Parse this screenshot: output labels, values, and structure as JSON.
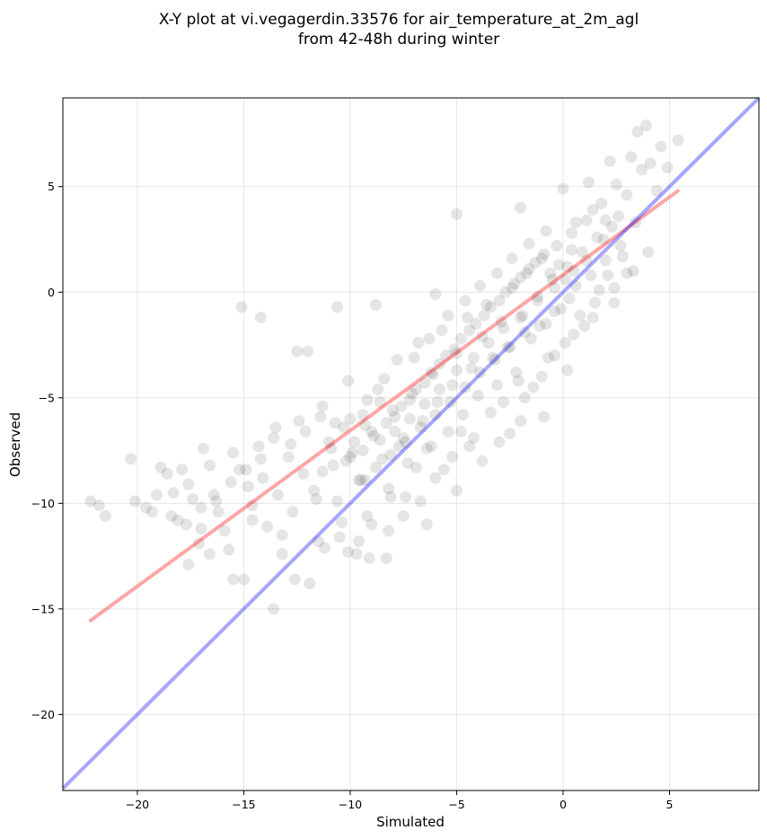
{
  "chart_data": {
    "type": "scatter",
    "title_line1": "X-Y plot at vi.vegagerdin.33576 for air_temperature_at_2m_agl",
    "title_line2": "from 42-48h during winter",
    "xlabel": "Simulated",
    "ylabel": "Observed",
    "xlim": [
      -23.5,
      9.2
    ],
    "ylim": [
      -23.6,
      9.2
    ],
    "xticks": [
      -20,
      -15,
      -10,
      -5,
      0,
      5
    ],
    "yticks": [
      -20,
      -15,
      -10,
      -5,
      0,
      5
    ],
    "xtick_labels": [
      "−20",
      "−15",
      "−10",
      "−5",
      "0",
      "5"
    ],
    "ytick_labels": [
      "−20",
      "−15",
      "−10",
      "−5",
      "0",
      "5"
    ],
    "grid": true,
    "point_color": "#000000",
    "point_alpha": 0.1,
    "points": [
      [
        -22.2,
        -9.9
      ],
      [
        -21.8,
        -10.1
      ],
      [
        -21.5,
        -10.6
      ],
      [
        -20.3,
        -7.9
      ],
      [
        -20.1,
        -9.9
      ],
      [
        -19.6,
        -10.2
      ],
      [
        -19.3,
        -10.4
      ],
      [
        -18.9,
        -8.3
      ],
      [
        -18.6,
        -8.6
      ],
      [
        -18.3,
        -9.5
      ],
      [
        -18.1,
        -10.8
      ],
      [
        -17.9,
        -8.4
      ],
      [
        -17.6,
        -9.1
      ],
      [
        -17.4,
        -9.8
      ],
      [
        -17.1,
        -11.9
      ],
      [
        -16.9,
        -7.4
      ],
      [
        -16.6,
        -8.2
      ],
      [
        -16.4,
        -9.6
      ],
      [
        -16.2,
        -10.4
      ],
      [
        -15.9,
        -11.3
      ],
      [
        -15.7,
        -12.2
      ],
      [
        -15.5,
        -7.6
      ],
      [
        -15.2,
        -8.4
      ],
      [
        -15.0,
        -13.6
      ],
      [
        -14.8,
        -9.2
      ],
      [
        -14.6,
        -10.1
      ],
      [
        -14.3,
        -7.3
      ],
      [
        -14.1,
        -8.8
      ],
      [
        -13.9,
        -11.1
      ],
      [
        -13.6,
        -6.9
      ],
      [
        -13.4,
        -9.6
      ],
      [
        -13.2,
        -12.4
      ],
      [
        -12.9,
        -7.8
      ],
      [
        -12.7,
        -10.4
      ],
      [
        -12.4,
        -6.1
      ],
      [
        -12.2,
        -8.6
      ],
      [
        -12.0,
        -2.8
      ],
      [
        -11.7,
        -9.4
      ],
      [
        -11.5,
        -11.8
      ],
      [
        -11.3,
        -5.4
      ],
      [
        -11.0,
        -7.1
      ],
      [
        -10.8,
        -8.2
      ],
      [
        -10.6,
        -9.9
      ],
      [
        -10.3,
        -6.4
      ],
      [
        -10.1,
        -4.2
      ],
      [
        -9.9,
        -7.6
      ],
      [
        -9.6,
        -8.9
      ],
      [
        -9.4,
        -5.8
      ],
      [
        -9.2,
        -10.6
      ],
      [
        -8.9,
        -6.8
      ],
      [
        -8.7,
        -4.6
      ],
      [
        -8.5,
        -7.9
      ],
      [
        -8.2,
        -9.3
      ],
      [
        -8.0,
        -5.6
      ],
      [
        -7.8,
        -3.2
      ],
      [
        -7.5,
        -6.9
      ],
      [
        -7.3,
        -8.1
      ],
      [
        -7.1,
        -4.8
      ],
      [
        -6.8,
        -2.4
      ],
      [
        -6.6,
        -6.1
      ],
      [
        -6.4,
        -7.4
      ],
      [
        -6.1,
        -3.9
      ],
      [
        -5.9,
        -5.2
      ],
      [
        -5.7,
        -1.8
      ],
      [
        -5.4,
        -6.6
      ],
      [
        -5.2,
        -4.4
      ],
      [
        -5.0,
        -2.9
      ],
      [
        -4.7,
        -5.8
      ],
      [
        -4.5,
        -1.2
      ],
      [
        -4.3,
        -3.6
      ],
      [
        -4.0,
        -4.9
      ],
      [
        -3.8,
        -2.1
      ],
      [
        -3.6,
        -0.6
      ],
      [
        -3.3,
        -3.1
      ],
      [
        -3.1,
        -4.4
      ],
      [
        -2.9,
        -1.4
      ],
      [
        -2.6,
        -2.6
      ],
      [
        -2.4,
        0.2
      ],
      [
        -2.2,
        -3.8
      ],
      [
        -1.9,
        -1.1
      ],
      [
        -1.7,
        0.9
      ],
      [
        -1.5,
        -2.2
      ],
      [
        -1.2,
        -0.2
      ],
      [
        -1.0,
        1.6
      ],
      [
        -0.8,
        -1.5
      ],
      [
        -0.5,
        0.6
      ],
      [
        -0.3,
        2.2
      ],
      [
        -0.1,
        -0.8
      ],
      [
        0.2,
        1.2
      ],
      [
        0.4,
        2.8
      ],
      [
        0.6,
        0.3
      ],
      [
        0.9,
        1.9
      ],
      [
        1.1,
        3.4
      ],
      [
        1.3,
        0.8
      ],
      [
        1.6,
        2.6
      ],
      [
        1.8,
        4.2
      ],
      [
        2.0,
        1.5
      ],
      [
        2.3,
        3.1
      ],
      [
        2.5,
        5.1
      ],
      [
        2.7,
        2.2
      ],
      [
        3.0,
        4.6
      ],
      [
        3.2,
        6.4
      ],
      [
        3.4,
        3.3
      ],
      [
        3.7,
        5.8
      ],
      [
        3.9,
        7.9
      ],
      [
        4.1,
        6.1
      ],
      [
        4.4,
        4.8
      ],
      [
        4.6,
        6.9
      ],
      [
        4.9,
        5.9
      ],
      [
        5.4,
        7.2
      ],
      [
        -15.1,
        -0.7
      ],
      [
        -14.2,
        -1.2
      ],
      [
        -10.6,
        -0.7
      ],
      [
        -12.5,
        -2.8
      ],
      [
        -8.8,
        -0.6
      ],
      [
        -6.0,
        -0.1
      ],
      [
        -5.0,
        3.7
      ],
      [
        -2.0,
        4.0
      ],
      [
        0.0,
        4.9
      ],
      [
        1.2,
        5.2
      ],
      [
        2.2,
        6.2
      ],
      [
        3.5,
        7.6
      ],
      [
        -9.6,
        -11.8
      ],
      [
        -9.1,
        -12.6
      ],
      [
        -8.3,
        -12.6
      ],
      [
        -12.6,
        -13.6
      ],
      [
        -13.6,
        -15.0
      ],
      [
        -11.9,
        -13.8
      ],
      [
        -10.1,
        -12.3
      ],
      [
        -6.4,
        -11.0
      ],
      [
        -7.4,
        -9.7
      ],
      [
        -5.0,
        -9.4
      ],
      [
        -3.8,
        -8.0
      ],
      [
        -2.0,
        -6.1
      ],
      [
        -0.9,
        -5.9
      ],
      [
        0.2,
        -3.7
      ],
      [
        1.4,
        -1.2
      ],
      [
        2.4,
        0.2
      ],
      [
        3.3,
        1.0
      ],
      [
        4.0,
        1.9
      ],
      [
        -17.6,
        -12.9
      ],
      [
        -16.6,
        -12.4
      ],
      [
        -15.5,
        -13.6
      ],
      [
        -17.0,
        -11.2
      ],
      [
        -14.6,
        -10.8
      ],
      [
        -13.2,
        -11.5
      ],
      [
        -11.6,
        -9.8
      ],
      [
        -10.4,
        -10.9
      ],
      [
        -9.3,
        -8.9
      ],
      [
        -8.1,
        -9.7
      ],
      [
        -7.7,
        -7.3
      ],
      [
        -6.9,
        -8.3
      ],
      [
        -6.2,
        -7.3
      ],
      [
        -5.6,
        -8.4
      ],
      [
        -4.8,
        -6.6
      ],
      [
        -4.2,
        -6.9
      ],
      [
        -3.4,
        -5.7
      ],
      [
        -2.8,
        -5.2
      ],
      [
        -2.1,
        -4.2
      ],
      [
        -1.4,
        -4.5
      ],
      [
        -0.7,
        -3.1
      ],
      [
        0.1,
        -2.4
      ],
      [
        0.8,
        -1.1
      ],
      [
        1.5,
        -0.5
      ],
      [
        2.1,
        0.8
      ],
      [
        2.8,
        1.7
      ],
      [
        -9.8,
        -7.1
      ],
      [
        -9.4,
        -7.5
      ],
      [
        -9.0,
        -6.6
      ],
      [
        -8.6,
        -7.0
      ],
      [
        -8.3,
        -6.2
      ],
      [
        -7.9,
        -5.9
      ],
      [
        -7.6,
        -5.4
      ],
      [
        -7.2,
        -5.1
      ],
      [
        -6.9,
        -4.6
      ],
      [
        -6.5,
        -4.3
      ],
      [
        -6.2,
        -3.8
      ],
      [
        -5.8,
        -3.4
      ],
      [
        -5.5,
        -3.0
      ],
      [
        -5.1,
        -2.7
      ],
      [
        -4.8,
        -2.2
      ],
      [
        -4.4,
        -1.8
      ],
      [
        -4.1,
        -1.5
      ],
      [
        -3.7,
        -1.1
      ],
      [
        -3.4,
        -0.7
      ],
      [
        -3.0,
        -0.4
      ],
      [
        -2.7,
        0.0
      ],
      [
        -2.3,
        0.4
      ],
      [
        -2.0,
        0.7
      ],
      [
        -1.6,
        1.1
      ],
      [
        -1.3,
        1.4
      ],
      [
        -0.9,
        1.8
      ],
      [
        -0.6,
        0.9
      ],
      [
        -0.2,
        1.3
      ],
      [
        0.1,
        0.6
      ],
      [
        0.5,
        1.0
      ],
      [
        -1.8,
        -1.9
      ],
      [
        -1.1,
        -1.6
      ],
      [
        -0.4,
        -0.9
      ],
      [
        0.3,
        -0.3
      ],
      [
        -2.5,
        -2.6
      ],
      [
        -3.2,
        -3.2
      ],
      [
        -3.9,
        -3.8
      ],
      [
        -4.6,
        -4.5
      ],
      [
        -5.3,
        -5.2
      ],
      [
        -6.0,
        -5.8
      ],
      [
        -6.7,
        -6.4
      ],
      [
        -7.4,
        -7.1
      ],
      [
        -8.1,
        -7.7
      ],
      [
        -8.8,
        -8.3
      ],
      [
        -9.5,
        -8.9
      ],
      [
        -10.2,
        -8.0
      ],
      [
        -10.9,
        -7.4
      ],
      [
        -11.3,
        -8.5
      ],
      [
        -10.0,
        -6.0
      ],
      [
        -9.2,
        -5.1
      ],
      [
        -8.4,
        -4.1
      ],
      [
        -7.0,
        -3.1
      ],
      [
        -6.3,
        -2.2
      ],
      [
        -5.4,
        -1.1
      ],
      [
        -4.6,
        -0.4
      ],
      [
        -3.9,
        0.3
      ],
      [
        -3.1,
        0.9
      ],
      [
        -2.4,
        1.6
      ],
      [
        -1.6,
        2.3
      ],
      [
        -0.8,
        2.9
      ],
      [
        0.6,
        3.3
      ],
      [
        1.4,
        3.9
      ],
      [
        2.0,
        3.4
      ],
      [
        2.6,
        3.6
      ],
      [
        1.9,
        2.5
      ],
      [
        1.1,
        1.5
      ],
      [
        0.4,
        2.0
      ],
      [
        -0.4,
        0.2
      ],
      [
        -1.2,
        -0.4
      ],
      [
        -2.0,
        -1.2
      ],
      [
        -2.8,
        -1.7
      ],
      [
        -3.5,
        -2.4
      ],
      [
        -4.2,
        -3.1
      ],
      [
        -5.0,
        -3.7
      ],
      [
        -5.8,
        -4.6
      ],
      [
        -6.5,
        -5.3
      ],
      [
        -7.2,
        -6.0
      ],
      [
        -7.9,
        -6.6
      ],
      [
        -8.6,
        -5.2
      ],
      [
        -9.3,
        -6.3
      ],
      [
        -10.0,
        -7.8
      ],
      [
        -10.7,
        -6.2
      ],
      [
        -11.4,
        -5.9
      ],
      [
        -12.1,
        -6.6
      ],
      [
        -12.8,
        -7.2
      ],
      [
        -13.5,
        -6.4
      ],
      [
        -14.2,
        -7.9
      ],
      [
        -14.9,
        -8.4
      ],
      [
        -15.6,
        -9.0
      ],
      [
        -16.3,
        -9.9
      ],
      [
        -17.0,
        -10.2
      ],
      [
        -17.7,
        -11.0
      ],
      [
        -18.4,
        -10.6
      ],
      [
        -19.1,
        -9.6
      ],
      [
        -3.0,
        -7.1
      ],
      [
        -2.5,
        -6.7
      ],
      [
        -1.8,
        -5.0
      ],
      [
        -1.0,
        -4.0
      ],
      [
        -0.4,
        -3.0
      ],
      [
        0.5,
        -2.0
      ],
      [
        1.0,
        -1.6
      ],
      [
        1.7,
        0.1
      ],
      [
        2.4,
        -0.5
      ],
      [
        3.0,
        0.9
      ],
      [
        -4.4,
        -7.3
      ],
      [
        -5.2,
        -7.8
      ],
      [
        -6.0,
        -8.8
      ],
      [
        -6.7,
        -9.9
      ],
      [
        -7.5,
        -10.6
      ],
      [
        -8.2,
        -11.3
      ],
      [
        -9.0,
        -11.0
      ],
      [
        -9.7,
        -12.4
      ],
      [
        -10.5,
        -11.6
      ],
      [
        -11.2,
        -12.1
      ]
    ],
    "regression_line": {
      "color": "#ff0000",
      "alpha": 0.35,
      "x": [
        -22.2,
        5.4
      ],
      "y": [
        -15.55,
        4.8
      ]
    },
    "identity_line": {
      "color": "#0000ff",
      "alpha": 0.35,
      "x": [
        -23.5,
        9.2
      ],
      "y": [
        -23.5,
        9.2
      ]
    }
  }
}
